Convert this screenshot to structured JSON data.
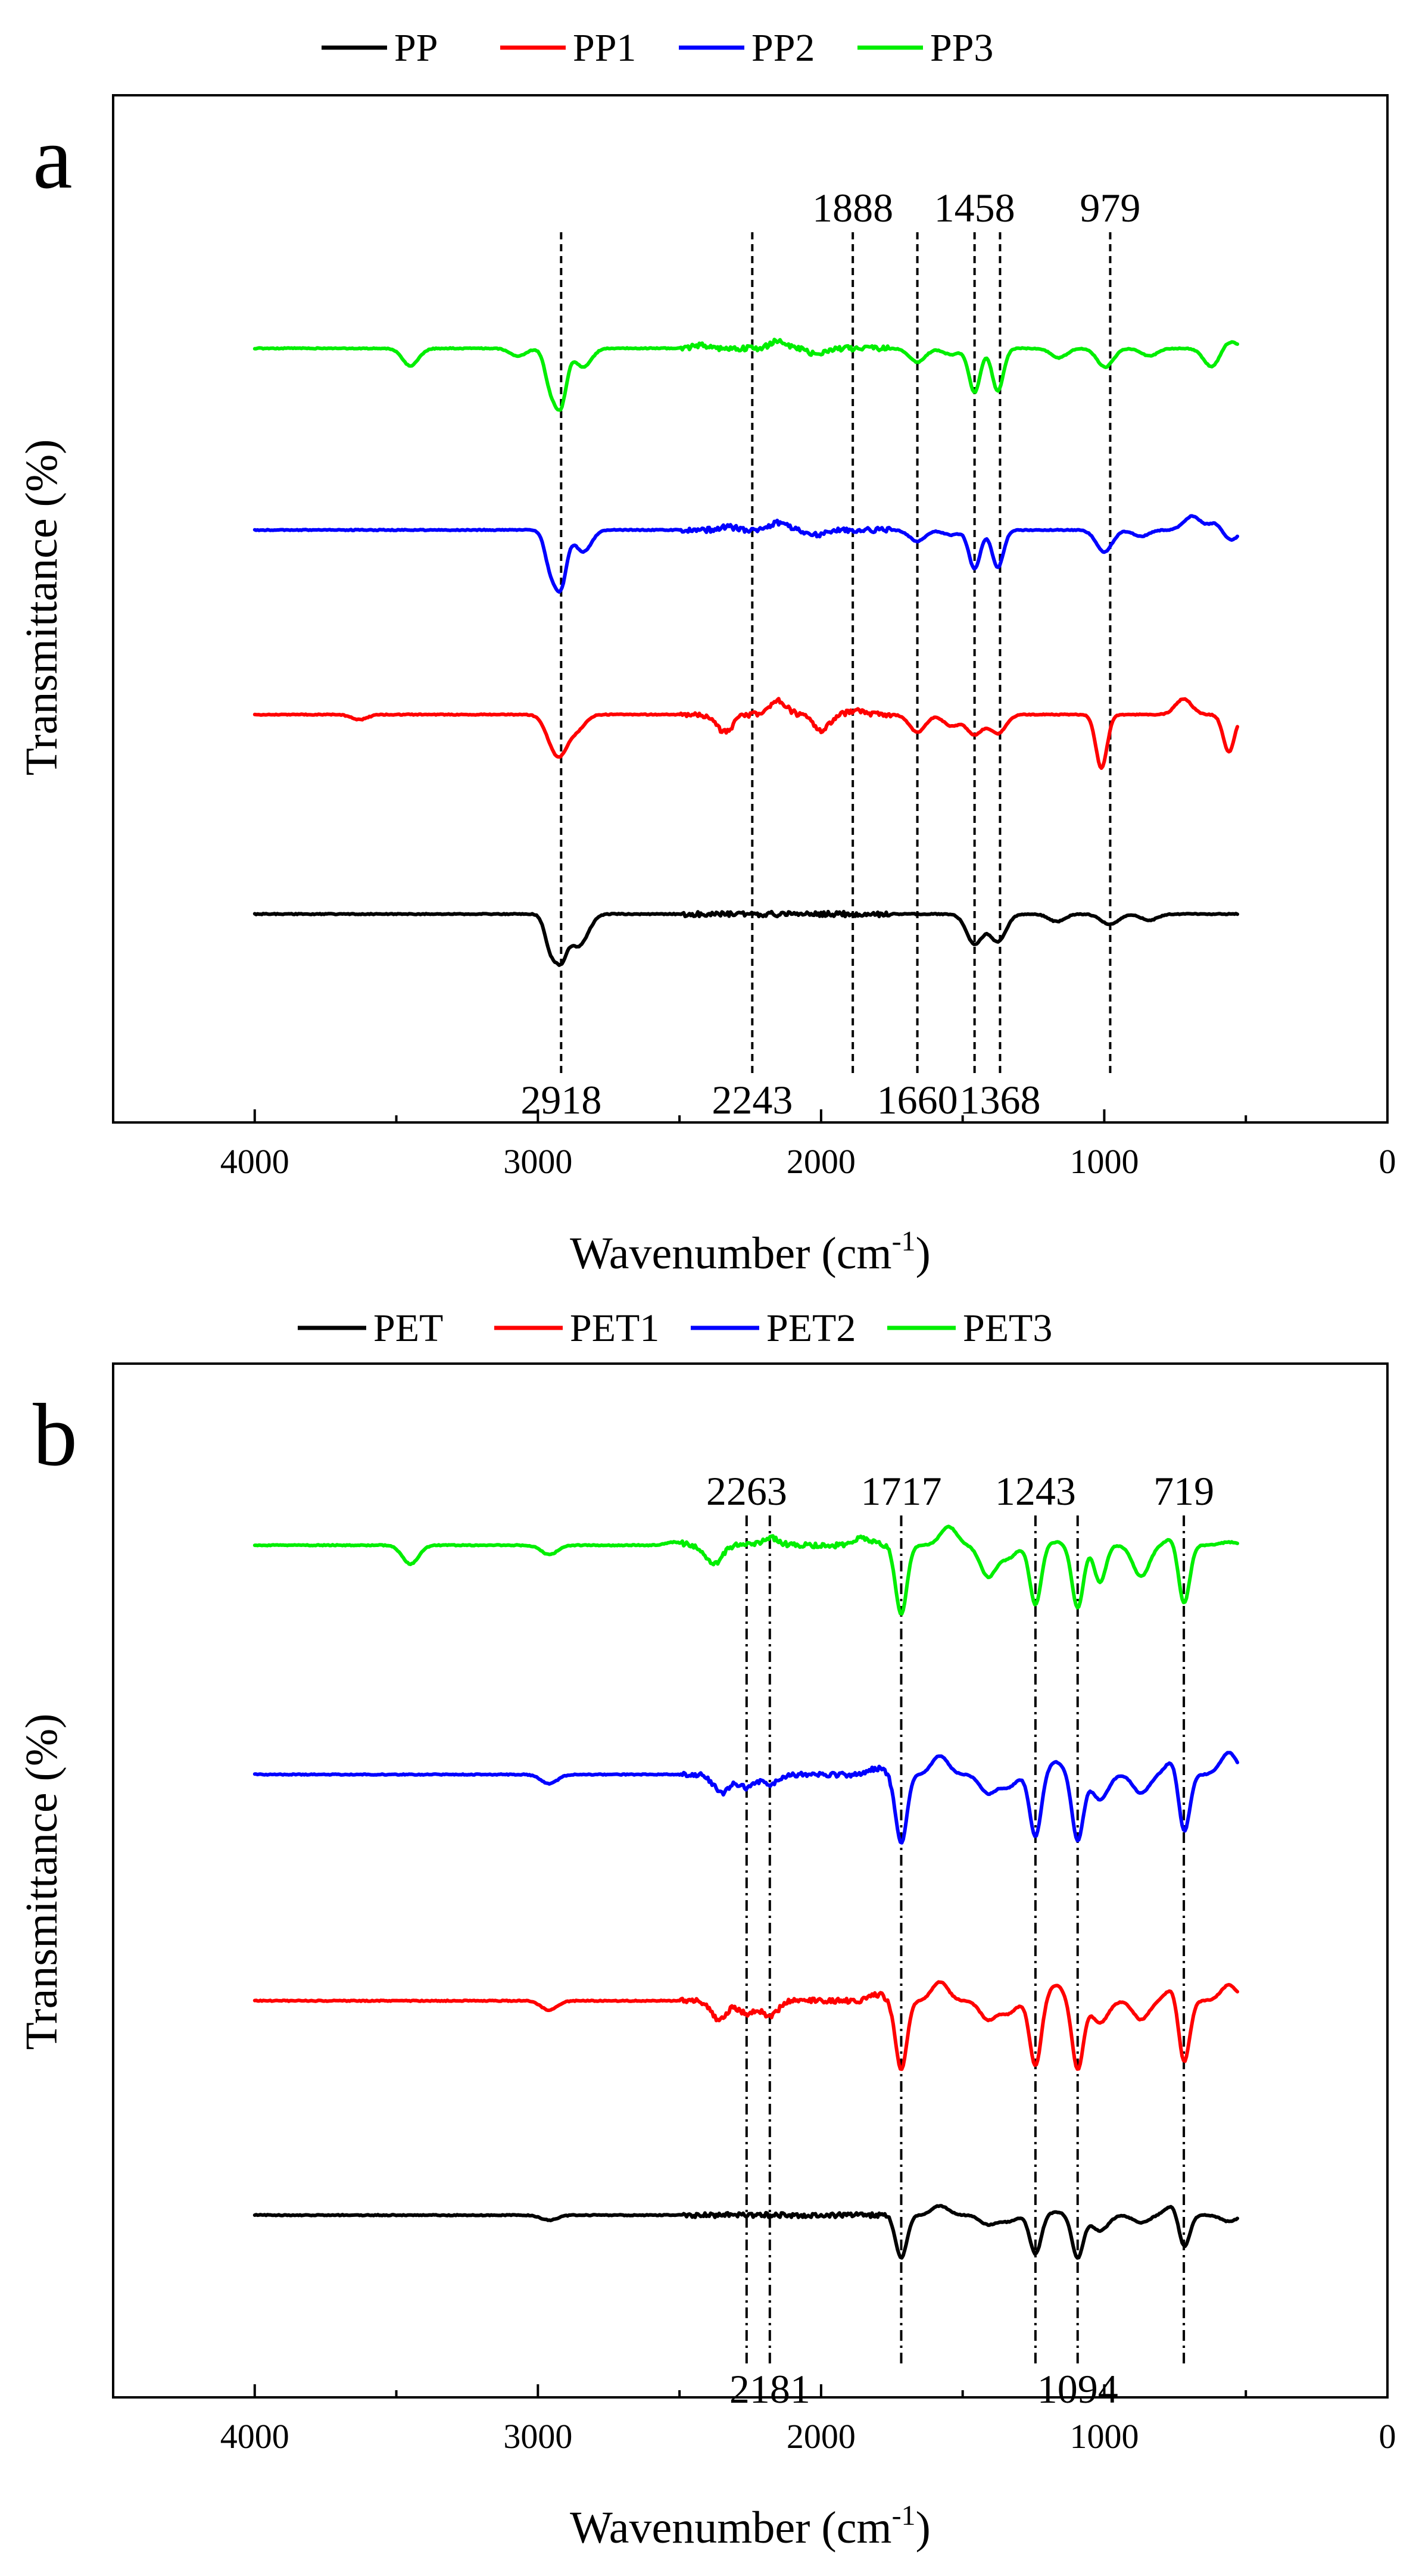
{
  "chart_data": [
    {
      "panel": "a",
      "type": "line",
      "title": "",
      "xlabel": "Wavenumber (cm",
      "xlabel_superscript": "-1",
      "xlabel_suffix": ")",
      "ylabel": "Transmittance (%)",
      "xlim": [
        4500,
        0
      ],
      "xticks": [
        4000,
        3000,
        2000,
        1000,
        0
      ],
      "xtick_labels": [
        "4000",
        "3000",
        "2000",
        "1000",
        "0"
      ],
      "legend_position": "top-center",
      "series": [
        {
          "name": "PP",
          "color": "#000000",
          "baseline": 0,
          "features": [
            [
              2955,
              -0.55
            ],
            [
              2918,
              -0.62
            ],
            [
              2870,
              -0.35
            ],
            [
              2838,
              -0.25
            ],
            [
              1458,
              -0.48
            ],
            [
              1376,
              -0.44
            ],
            [
              1168,
              -0.12
            ],
            [
              997,
              -0.06
            ],
            [
              973,
              -0.12
            ],
            [
              841,
              -0.1
            ]
          ]
        },
        {
          "name": "PP1",
          "color": "#ff0000",
          "baseline": 0,
          "features": [
            [
              3630,
              -0.08
            ],
            [
              2950,
              -0.3
            ],
            [
              2918,
              -0.48
            ],
            [
              2860,
              -0.22
            ],
            [
              2340,
              -0.28
            ],
            [
              2150,
              0.22
            ],
            [
              2000,
              -0.25
            ],
            [
              1880,
              0.06
            ],
            [
              1660,
              -0.28
            ],
            [
              1540,
              -0.18
            ],
            [
              1458,
              -0.32
            ],
            [
              1376,
              -0.3
            ],
            [
              1010,
              -0.85
            ],
            [
              720,
              0.25
            ],
            [
              560,
              -0.6
            ]
          ]
        },
        {
          "name": "PP2",
          "color": "#0000ff",
          "baseline": 0,
          "features": [
            [
              2955,
              -0.6
            ],
            [
              2918,
              -0.85
            ],
            [
              2840,
              -0.35
            ],
            [
              2330,
              0.05
            ],
            [
              2150,
              0.12
            ],
            [
              2020,
              -0.08
            ],
            [
              1660,
              -0.18
            ],
            [
              1540,
              -0.08
            ],
            [
              1458,
              -0.62
            ],
            [
              1376,
              -0.6
            ],
            [
              1000,
              -0.35
            ],
            [
              870,
              -0.1
            ],
            [
              690,
              0.22
            ],
            [
              600,
              0.15
            ],
            [
              560,
              -0.2
            ]
          ]
        },
        {
          "name": "PP3",
          "color": "#00ee00",
          "baseline": 0,
          "features": [
            [
              3450,
              -0.28
            ],
            [
              3070,
              -0.12
            ],
            [
              2955,
              -0.6
            ],
            [
              2918,
              -0.85
            ],
            [
              2840,
              -0.3
            ],
            [
              2420,
              0.05
            ],
            [
              2150,
              0.12
            ],
            [
              2020,
              -0.08
            ],
            [
              1660,
              -0.22
            ],
            [
              1540,
              -0.1
            ],
            [
              1458,
              -0.7
            ],
            [
              1376,
              -0.68
            ],
            [
              1160,
              -0.15
            ],
            [
              997,
              -0.3
            ],
            [
              840,
              -0.12
            ],
            [
              620,
              -0.3
            ],
            [
              560,
              0.12
            ]
          ]
        }
      ],
      "reference_lines": [
        {
          "x": 2918,
          "label": "2918",
          "label_position": "bottom"
        },
        {
          "x": 2243,
          "label": "2243",
          "label_position": "bottom"
        },
        {
          "x": 1888,
          "label": "1888",
          "label_position": "top"
        },
        {
          "x": 1660,
          "label": "1660",
          "label_position": "bottom"
        },
        {
          "x": 1458,
          "label": "1458",
          "label_position": "top"
        },
        {
          "x": 1368,
          "label": "1368",
          "label_position": "bottom"
        },
        {
          "x": 979,
          "label": "979",
          "label_position": "top"
        }
      ]
    },
    {
      "panel": "b",
      "type": "line",
      "title": "",
      "xlabel": "Wavenumber (cm",
      "xlabel_superscript": "-1",
      "xlabel_suffix": ")",
      "ylabel": "Transmittance (%)",
      "xlim": [
        4500,
        0
      ],
      "xticks": [
        4000,
        3000,
        2000,
        1000,
        0
      ],
      "xtick_labels": [
        "4000",
        "3000",
        "2000",
        "1000",
        "0"
      ],
      "legend_position": "top-center",
      "series": [
        {
          "name": "PET",
          "color": "#000000",
          "baseline": 0,
          "features": [
            [
              2960,
              -0.08
            ],
            [
              1717,
              -0.68
            ],
            [
              1580,
              0.15
            ],
            [
              1410,
              -0.15
            ],
            [
              1340,
              -0.1
            ],
            [
              1243,
              -0.62
            ],
            [
              1170,
              0.05
            ],
            [
              1094,
              -0.68
            ],
            [
              1015,
              -0.25
            ],
            [
              870,
              -0.12
            ],
            [
              750,
              0.2
            ],
            [
              719,
              -0.6
            ],
            [
              560,
              -0.1
            ]
          ]
        },
        {
          "name": "PET1",
          "color": "#ff0000",
          "baseline": 0,
          "features": [
            [
              2960,
              -0.15
            ],
            [
              2360,
              -0.3
            ],
            [
              2263,
              -0.2
            ],
            [
              2181,
              -0.25
            ],
            [
              1800,
              0.1
            ],
            [
              1717,
              -1.1
            ],
            [
              1580,
              0.3
            ],
            [
              1410,
              -0.3
            ],
            [
              1340,
              -0.2
            ],
            [
              1243,
              -1.05
            ],
            [
              1170,
              0.25
            ],
            [
              1094,
              -1.1
            ],
            [
              1015,
              -0.35
            ],
            [
              870,
              -0.3
            ],
            [
              750,
              0.25
            ],
            [
              719,
              -1.1
            ],
            [
              560,
              0.25
            ]
          ]
        },
        {
          "name": "PET2",
          "color": "#0000ff",
          "baseline": 0,
          "features": [
            [
              2960,
              -0.15
            ],
            [
              2350,
              -0.3
            ],
            [
              2263,
              -0.2
            ],
            [
              2181,
              -0.15
            ],
            [
              1800,
              0.1
            ],
            [
              1717,
              -1.1
            ],
            [
              1580,
              0.3
            ],
            [
              1410,
              -0.3
            ],
            [
              1340,
              -0.2
            ],
            [
              1243,
              -1.0
            ],
            [
              1170,
              0.2
            ],
            [
              1094,
              -1.05
            ],
            [
              1015,
              -0.4
            ],
            [
              870,
              -0.3
            ],
            [
              750,
              0.28
            ],
            [
              719,
              -1.05
            ],
            [
              560,
              0.35
            ]
          ]
        },
        {
          "name": "PET3",
          "color": "#00ee00",
          "baseline": 0,
          "features": [
            [
              3450,
              -0.3
            ],
            [
              2960,
              -0.15
            ],
            [
              2520,
              0.05
            ],
            [
              2380,
              -0.3
            ],
            [
              2181,
              0.12
            ],
            [
              1850,
              0.12
            ],
            [
              1717,
              -1.1
            ],
            [
              1550,
              0.3
            ],
            [
              1410,
              -0.5
            ],
            [
              1340,
              -0.2
            ],
            [
              1243,
              -0.95
            ],
            [
              1170,
              0.05
            ],
            [
              1094,
              -1.0
            ],
            [
              1015,
              -0.6
            ],
            [
              870,
              -0.5
            ],
            [
              750,
              0.15
            ],
            [
              719,
              -1.0
            ],
            [
              560,
              0.05
            ]
          ]
        }
      ],
      "reference_lines": [
        {
          "x": 2263,
          "label": "2263",
          "label_position": "top"
        },
        {
          "x": 2181,
          "label": "2181",
          "label_position": "bottom"
        },
        {
          "x": 1717,
          "label": "1717",
          "label_position": "top"
        },
        {
          "x": 1243,
          "label": "1243",
          "label_position": "top"
        },
        {
          "x": 1094,
          "label": "1094",
          "label_position": "bottom"
        },
        {
          "x": 719,
          "label": "719",
          "label_position": "top"
        }
      ]
    }
  ]
}
